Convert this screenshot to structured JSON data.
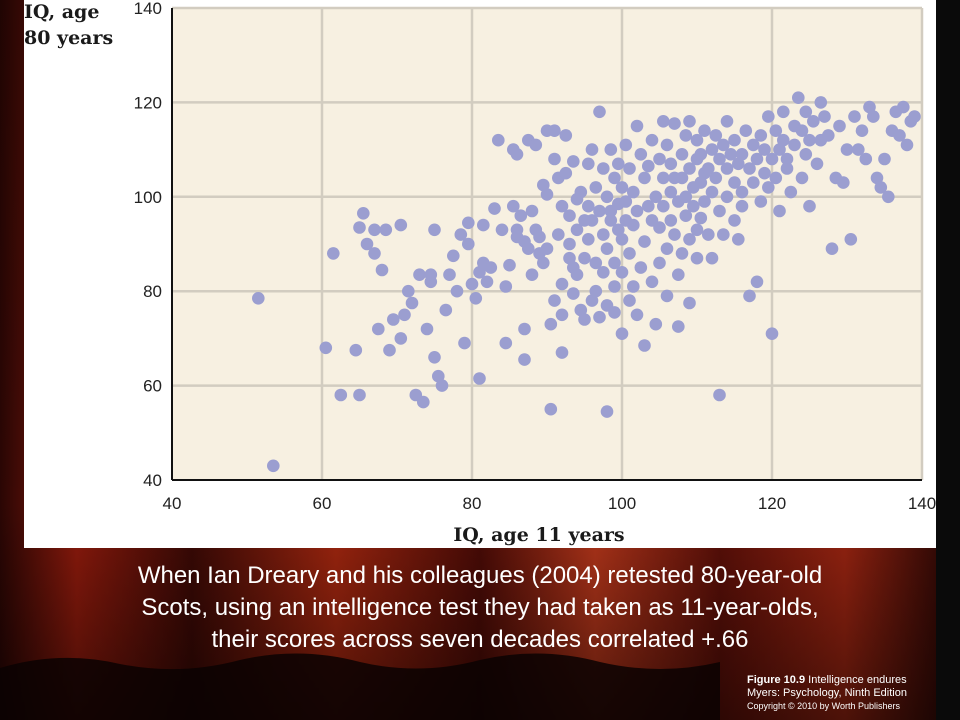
{
  "colors": {
    "plot_background": "#f7f0e1",
    "gridline": "#d2ccc0",
    "point": "#9b9ed0",
    "caption_text": "#ffffff"
  },
  "caption": {
    "line1": "When Ian Dreary and his colleagues (2004) retested 80-year-old",
    "line2": "Scots, using an intelligence test they had taken as 11-year-olds,",
    "line3": "their scores across seven decades correlated +.66"
  },
  "credit": {
    "figure_label": "Figure 10.9",
    "figure_title": "Intelligence endures",
    "book": "Myers: Psychology, Ninth Edition",
    "copyright": "Copyright © 2010 by Worth Publishers"
  },
  "chart_data": {
    "type": "scatter",
    "title": "",
    "xlabel": "IQ, age 11 years",
    "ylabel_line1": "IQ, age",
    "ylabel_line2": "80 years",
    "xlim": [
      40,
      140
    ],
    "ylim": [
      40,
      140
    ],
    "x_ticks": [
      40,
      60,
      80,
      100,
      120,
      140
    ],
    "y_ticks": [
      40,
      60,
      80,
      100,
      120,
      140
    ],
    "grid": true,
    "point_color": "#9b9ed0",
    "points": [
      [
        51.5,
        78.5
      ],
      [
        53.5,
        43
      ],
      [
        60.5,
        68
      ],
      [
        61.5,
        88
      ],
      [
        62.5,
        58
      ],
      [
        64.5,
        67.5
      ],
      [
        65,
        58
      ],
      [
        65,
        93.5
      ],
      [
        65.5,
        96.5
      ],
      [
        66,
        90
      ],
      [
        67,
        93
      ],
      [
        67,
        88
      ],
      [
        67.5,
        72
      ],
      [
        68,
        84.5
      ],
      [
        68.5,
        93
      ],
      [
        69,
        67.5
      ],
      [
        69.5,
        74
      ],
      [
        70.5,
        70
      ],
      [
        70.5,
        94
      ],
      [
        71,
        75
      ],
      [
        71.5,
        80
      ],
      [
        72,
        77.5
      ],
      [
        72.5,
        58
      ],
      [
        73,
        83.5
      ],
      [
        73.5,
        56.5
      ],
      [
        74,
        72
      ],
      [
        74.5,
        82
      ],
      [
        74.5,
        83.5
      ],
      [
        75,
        66
      ],
      [
        75,
        93
      ],
      [
        75.5,
        62
      ],
      [
        76,
        60
      ],
      [
        76.5,
        76
      ],
      [
        77,
        83.5
      ],
      [
        77.5,
        87.5
      ],
      [
        78,
        80
      ],
      [
        78.5,
        92
      ],
      [
        79,
        69
      ],
      [
        79.5,
        94.5
      ],
      [
        79.5,
        90
      ],
      [
        80,
        81.5
      ],
      [
        80.5,
        78.5
      ],
      [
        81,
        61.5
      ],
      [
        81,
        84
      ],
      [
        81.5,
        94
      ],
      [
        81.5,
        86
      ],
      [
        82,
        82
      ],
      [
        82.5,
        85
      ],
      [
        83,
        97.5
      ],
      [
        83.5,
        112
      ],
      [
        84,
        93
      ],
      [
        84.5,
        69
      ],
      [
        84.5,
        81
      ],
      [
        85,
        85.5
      ],
      [
        85.5,
        98
      ],
      [
        85.5,
        110
      ],
      [
        86,
        93
      ],
      [
        86,
        91.5
      ],
      [
        86,
        109
      ],
      [
        86.5,
        96
      ],
      [
        87,
        72
      ],
      [
        87,
        65.5
      ],
      [
        87,
        90.5
      ],
      [
        87.5,
        112
      ],
      [
        87.5,
        89
      ],
      [
        88,
        97
      ],
      [
        88,
        83.5
      ],
      [
        88.5,
        111
      ],
      [
        88.5,
        93
      ],
      [
        89,
        91.5
      ],
      [
        89,
        88
      ],
      [
        89.5,
        102.5
      ],
      [
        89.5,
        86
      ],
      [
        90,
        114
      ],
      [
        90,
        100.5
      ],
      [
        90,
        89
      ],
      [
        90.5,
        55
      ],
      [
        90.5,
        73
      ],
      [
        91,
        78
      ],
      [
        91,
        114
      ],
      [
        91,
        108
      ],
      [
        91.5,
        104
      ],
      [
        91.5,
        92
      ],
      [
        92,
        98
      ],
      [
        92,
        81.5
      ],
      [
        92,
        75
      ],
      [
        92,
        67
      ],
      [
        92.5,
        113
      ],
      [
        92.5,
        105
      ],
      [
        93,
        90
      ],
      [
        93,
        96
      ],
      [
        93,
        87
      ],
      [
        93.5,
        85
      ],
      [
        93.5,
        79.5
      ],
      [
        93.5,
        107.5
      ],
      [
        94,
        99.5
      ],
      [
        94,
        93
      ],
      [
        94,
        83.5
      ],
      [
        94.5,
        76
      ],
      [
        94.5,
        101
      ],
      [
        95,
        95
      ],
      [
        95,
        87
      ],
      [
        95,
        74
      ],
      [
        95.5,
        107
      ],
      [
        95.5,
        98
      ],
      [
        95.5,
        91
      ],
      [
        96,
        78
      ],
      [
        96,
        110
      ],
      [
        96,
        95
      ],
      [
        96.5,
        86
      ],
      [
        96.5,
        102
      ],
      [
        96.5,
        80
      ],
      [
        97,
        97
      ],
      [
        97,
        74.5
      ],
      [
        97,
        118
      ],
      [
        97.5,
        92
      ],
      [
        97.5,
        106
      ],
      [
        97.5,
        84
      ],
      [
        98,
        100
      ],
      [
        98,
        89
      ],
      [
        98,
        77
      ],
      [
        98,
        54.5
      ],
      [
        98.5,
        95
      ],
      [
        98.5,
        110
      ],
      [
        98.5,
        97
      ],
      [
        99,
        86
      ],
      [
        99,
        104
      ],
      [
        99,
        81
      ],
      [
        99,
        75.5
      ],
      [
        99.5,
        93
      ],
      [
        99.5,
        107
      ],
      [
        99.5,
        98.5
      ],
      [
        100,
        91
      ],
      [
        100,
        84
      ],
      [
        100,
        71
      ],
      [
        100,
        102
      ],
      [
        100.5,
        111
      ],
      [
        100.5,
        95
      ],
      [
        100.5,
        99
      ],
      [
        101,
        88
      ],
      [
        101,
        78
      ],
      [
        101,
        106
      ],
      [
        101.5,
        94
      ],
      [
        101.5,
        101
      ],
      [
        101.5,
        81
      ],
      [
        102,
        115
      ],
      [
        102,
        97
      ],
      [
        102,
        75
      ],
      [
        102.5,
        109
      ],
      [
        102.5,
        85
      ],
      [
        103,
        104
      ],
      [
        103,
        90.5
      ],
      [
        103,
        68.5
      ],
      [
        103.5,
        98
      ],
      [
        103.5,
        106.5
      ],
      [
        104,
        112
      ],
      [
        104,
        82
      ],
      [
        104,
        95
      ],
      [
        104.5,
        100
      ],
      [
        104.5,
        73
      ],
      [
        105,
        108
      ],
      [
        105,
        93.5
      ],
      [
        105,
        86
      ],
      [
        105.5,
        104
      ],
      [
        105.5,
        116
      ],
      [
        105.5,
        98
      ],
      [
        106,
        111
      ],
      [
        106,
        89
      ],
      [
        106,
        79
      ],
      [
        106.5,
        101
      ],
      [
        106.5,
        95
      ],
      [
        106.5,
        107
      ],
      [
        107,
        104
      ],
      [
        107,
        92
      ],
      [
        107,
        115.5
      ],
      [
        107.5,
        83.5
      ],
      [
        107.5,
        99
      ],
      [
        107.5,
        72.5
      ],
      [
        108,
        109
      ],
      [
        108,
        88
      ],
      [
        108,
        104
      ],
      [
        108.5,
        96
      ],
      [
        108.5,
        113
      ],
      [
        108.5,
        100
      ],
      [
        109,
        106
      ],
      [
        109,
        91
      ],
      [
        109,
        77.5
      ],
      [
        109,
        116
      ],
      [
        109.5,
        102
      ],
      [
        109.5,
        98
      ],
      [
        110,
        108
      ],
      [
        110,
        93
      ],
      [
        110,
        87
      ],
      [
        110,
        112
      ],
      [
        110.5,
        103
      ],
      [
        110.5,
        95.5
      ],
      [
        110.5,
        109
      ],
      [
        111,
        105
      ],
      [
        111,
        99
      ],
      [
        111,
        114
      ],
      [
        111.5,
        92
      ],
      [
        111.5,
        106
      ],
      [
        112,
        110
      ],
      [
        112,
        101
      ],
      [
        112,
        87
      ],
      [
        112.5,
        113
      ],
      [
        112.5,
        104
      ],
      [
        113,
        108
      ],
      [
        113,
        97
      ],
      [
        113,
        58
      ],
      [
        113.5,
        111
      ],
      [
        113.5,
        92
      ],
      [
        114,
        106
      ],
      [
        114,
        100
      ],
      [
        114,
        116
      ],
      [
        114.5,
        109
      ],
      [
        115,
        103
      ],
      [
        115,
        95
      ],
      [
        115,
        112
      ],
      [
        115.5,
        107
      ],
      [
        115.5,
        91
      ],
      [
        116,
        109
      ],
      [
        116,
        101
      ],
      [
        116,
        98
      ],
      [
        116.5,
        114
      ],
      [
        117,
        106
      ],
      [
        117,
        79
      ],
      [
        117.5,
        111
      ],
      [
        117.5,
        103
      ],
      [
        118,
        108
      ],
      [
        118,
        82
      ],
      [
        118.5,
        113
      ],
      [
        118.5,
        99
      ],
      [
        119,
        110
      ],
      [
        119,
        105
      ],
      [
        119.5,
        117
      ],
      [
        119.5,
        102
      ],
      [
        120,
        108
      ],
      [
        120,
        71
      ],
      [
        120.5,
        114
      ],
      [
        120.5,
        104
      ],
      [
        121,
        110
      ],
      [
        121,
        97
      ],
      [
        121.5,
        118
      ],
      [
        121.5,
        112
      ],
      [
        122,
        106
      ],
      [
        122,
        108
      ],
      [
        122.5,
        101
      ],
      [
        123,
        115
      ],
      [
        123,
        111
      ],
      [
        123.5,
        121
      ],
      [
        124,
        114
      ],
      [
        124,
        104
      ],
      [
        124.5,
        118
      ],
      [
        124.5,
        109
      ],
      [
        125,
        98
      ],
      [
        125,
        112
      ],
      [
        125.5,
        116
      ],
      [
        126,
        107
      ],
      [
        126.5,
        120
      ],
      [
        126.5,
        112
      ],
      [
        127,
        117
      ],
      [
        127.5,
        113
      ],
      [
        128,
        89
      ],
      [
        128.5,
        104
      ],
      [
        129,
        115
      ],
      [
        129.5,
        103
      ],
      [
        130,
        110
      ],
      [
        130.5,
        91
      ],
      [
        131,
        117
      ],
      [
        131.5,
        110
      ],
      [
        132,
        114
      ],
      [
        132.5,
        108
      ],
      [
        133,
        119
      ],
      [
        133.5,
        117
      ],
      [
        134,
        104
      ],
      [
        134.5,
        102
      ],
      [
        135,
        108
      ],
      [
        135.5,
        100
      ],
      [
        136,
        114
      ],
      [
        136.5,
        118
      ],
      [
        137,
        113
      ],
      [
        137.5,
        119
      ],
      [
        138,
        111
      ],
      [
        138.5,
        116
      ],
      [
        139,
        117
      ]
    ]
  }
}
